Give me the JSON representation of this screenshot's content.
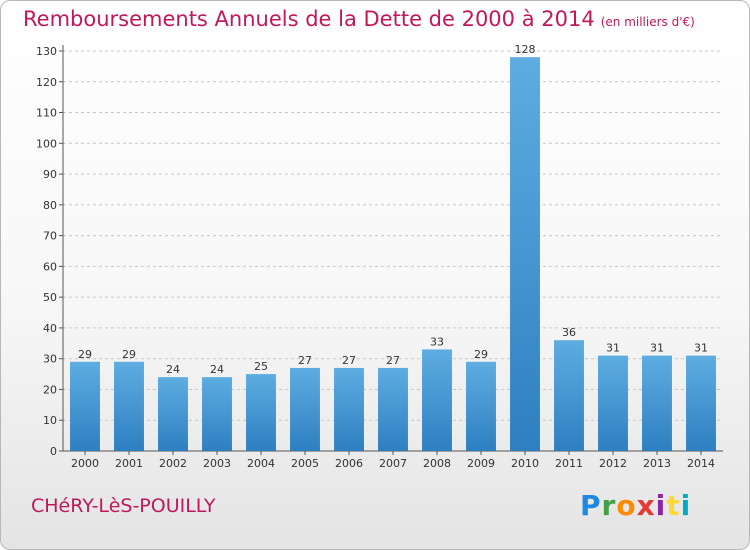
{
  "header": {
    "title": "Remboursements Annuels de la Dette de 2000 à 2014",
    "unit": "(en milliers d'€)"
  },
  "footer": {
    "commune": "CHéRY-LèS-POUILLY",
    "logo": "Proxiti"
  },
  "colors": {
    "title": "#c2185b",
    "bar_light": "#5dade2",
    "bar_dark": "#2e7fc0",
    "grid": "#c8c8c8"
  },
  "chart_data": {
    "type": "bar",
    "title": "Remboursements Annuels de la Dette de 2000 à 2014",
    "subtitle": "(en milliers d'€)",
    "categories": [
      "2000",
      "2001",
      "2002",
      "2003",
      "2004",
      "2005",
      "2006",
      "2007",
      "2008",
      "2009",
      "2010",
      "2011",
      "2012",
      "2013",
      "2014"
    ],
    "values": [
      29,
      29,
      24,
      24,
      25,
      27,
      27,
      27,
      33,
      29,
      128,
      36,
      31,
      31,
      31
    ],
    "ylim": [
      0,
      130
    ],
    "yticks": [
      0,
      10,
      20,
      30,
      40,
      50,
      60,
      70,
      80,
      90,
      100,
      110,
      120,
      130
    ],
    "grid": true,
    "grid_style": "dashed horizontal",
    "data_labels": true
  }
}
